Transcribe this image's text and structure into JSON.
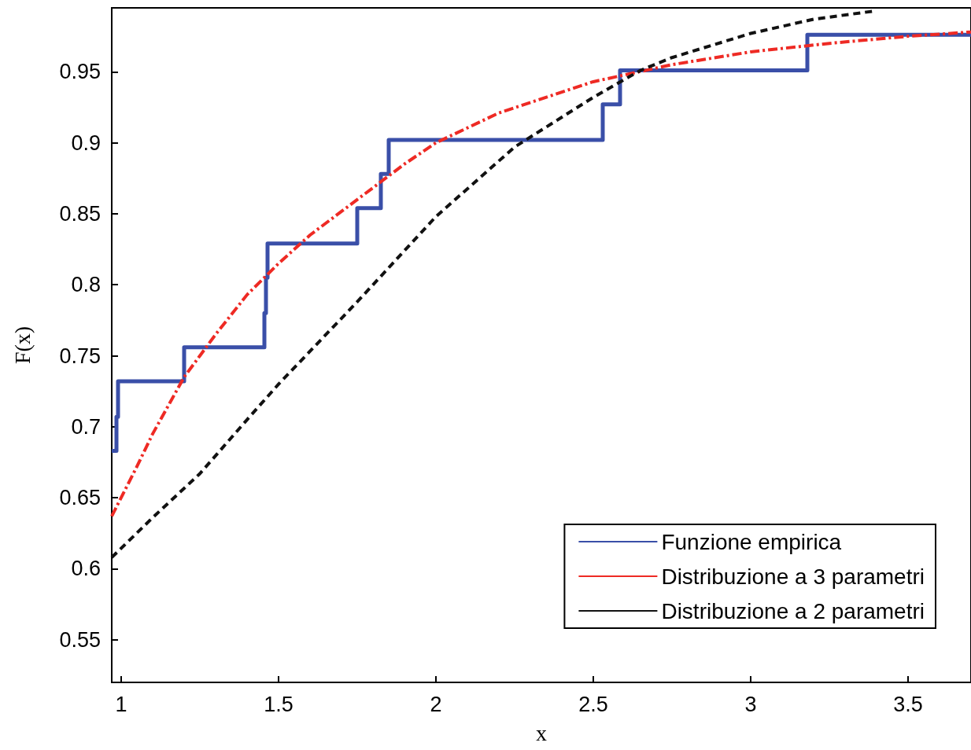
{
  "chart_data": {
    "type": "line",
    "xlabel": "x",
    "ylabel": "F(x)",
    "xlim": [
      0.97,
      3.7
    ],
    "ylim": [
      0.52,
      0.995
    ],
    "xticks": [
      1,
      1.5,
      2,
      2.5,
      3,
      3.5
    ],
    "yticks": [
      0.55,
      0.6,
      0.65,
      0.7,
      0.75,
      0.8,
      0.85,
      0.9,
      0.95
    ],
    "grid": false,
    "legend": "bottom right",
    "marker": "none",
    "series": [
      {
        "name": "Funzione empirica",
        "type": "step",
        "color": "#3a4fa8",
        "line_style": "solid",
        "x": [
          0.97,
          0.985,
          0.99,
          1.2,
          1.455,
          1.46,
          1.465,
          1.75,
          1.825,
          1.85,
          2.53,
          2.585,
          3.18,
          3.7
        ],
        "values": [
          0.683,
          0.707,
          0.732,
          0.756,
          0.78,
          0.805,
          0.829,
          0.854,
          0.878,
          0.902,
          0.927,
          0.951,
          0.976,
          0.976
        ]
      },
      {
        "name": "Distribuzione a 3 parametri",
        "color": "#ee2a24",
        "line_style": "dashdot",
        "x": [
          0.97,
          1.05,
          1.1,
          1.2,
          1.3,
          1.4,
          1.5,
          1.6,
          1.75,
          1.9,
          2.0,
          2.2,
          2.5,
          2.75,
          3.0,
          3.25,
          3.5,
          3.7
        ],
        "values": [
          0.637,
          0.672,
          0.695,
          0.735,
          0.765,
          0.793,
          0.815,
          0.835,
          0.86,
          0.885,
          0.9,
          0.921,
          0.943,
          0.955,
          0.964,
          0.97,
          0.975,
          0.978
        ]
      },
      {
        "name": "Distribuzione a 2 parametri",
        "color": "#111111",
        "line_style": "dashed",
        "x": [
          0.97,
          1.1,
          1.25,
          1.4,
          1.5,
          1.75,
          2.0,
          2.25,
          2.5,
          2.65,
          2.75,
          3.0,
          3.2,
          3.4
        ],
        "values": [
          0.608,
          0.636,
          0.667,
          0.705,
          0.73,
          0.788,
          0.848,
          0.897,
          0.932,
          0.951,
          0.96,
          0.977,
          0.987,
          0.993
        ]
      }
    ]
  }
}
